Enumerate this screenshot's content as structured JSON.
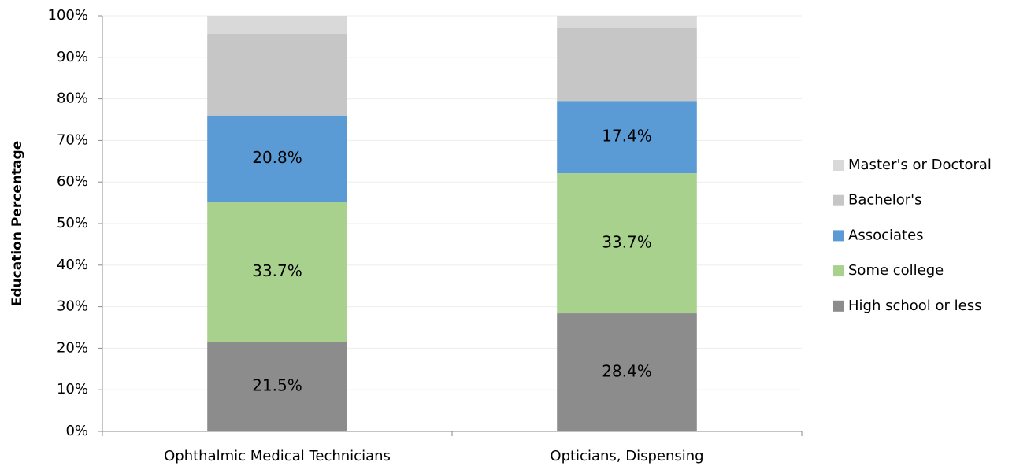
{
  "chart_data": {
    "type": "stacked_bar",
    "y_axis_label": "Education Percentage",
    "categories": [
      "Ophthalmic Medical Technicians",
      "Opticians, Dispensing"
    ],
    "series": [
      {
        "name": "High school or less",
        "color": "#8c8c8c",
        "values": [
          21.5,
          28.4
        ],
        "value_labels": [
          "21.5%",
          "28.4%"
        ]
      },
      {
        "name": "Some college",
        "color": "#a9d18e",
        "values": [
          33.7,
          33.7
        ],
        "value_labels": [
          "33.7%",
          "33.7%"
        ]
      },
      {
        "name": "Associates",
        "color": "#5b9bd5",
        "values": [
          20.8,
          17.4
        ],
        "value_labels": [
          "20.8%",
          "17.4%"
        ]
      },
      {
        "name": "Bachelor's",
        "color": "#c6c6c6",
        "values": [
          19.7,
          17.6
        ]
      },
      {
        "name": "Master's or Doctoral",
        "color": "#d9d9d9",
        "values": [
          4.3,
          2.9
        ]
      }
    ],
    "ylim": [
      0,
      100
    ],
    "yticks": [
      {
        "value": 0,
        "label": "0%"
      },
      {
        "value": 10,
        "label": "10%"
      },
      {
        "value": 20,
        "label": "20%"
      },
      {
        "value": 30,
        "label": "30%"
      },
      {
        "value": 40,
        "label": "40%"
      },
      {
        "value": 50,
        "label": "50%"
      },
      {
        "value": 60,
        "label": "60%"
      },
      {
        "value": 70,
        "label": "70%"
      },
      {
        "value": 80,
        "label": "80%"
      },
      {
        "value": 90,
        "label": "90%"
      },
      {
        "value": 100,
        "label": "100%"
      }
    ],
    "grid": true,
    "legend": "right"
  }
}
